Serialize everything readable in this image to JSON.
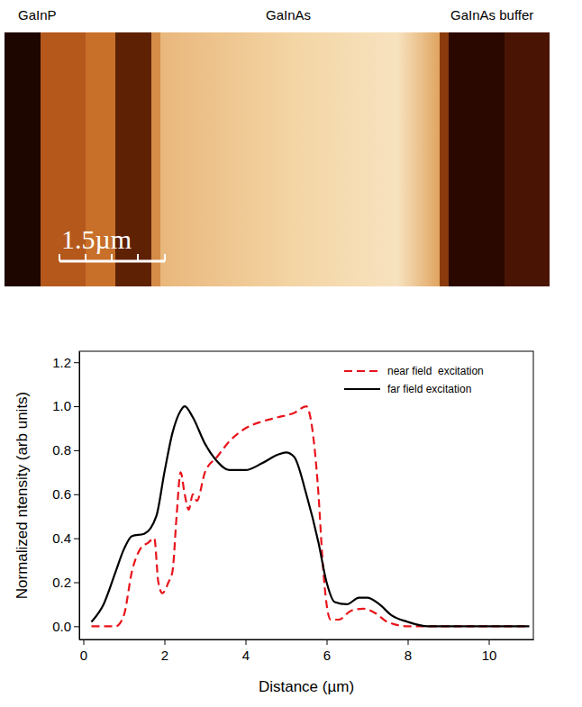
{
  "image": {
    "labels": [
      "GaInP",
      "GaInAs",
      "GaInAs buffer"
    ],
    "scale_bar": "1.5µm"
  },
  "chart_data": {
    "type": "line",
    "x_label": "Distance (µm)",
    "y_label": "Normalized ntensity (arb units)",
    "xlim": [
      -0.1,
      11.1
    ],
    "ylim": [
      -0.06,
      1.25
    ],
    "xticks": [
      0,
      2,
      4,
      6,
      8,
      10
    ],
    "yticks": [
      {
        "value": 0,
        "label": "0.0"
      },
      {
        "value": 0.2,
        "label": "0.2"
      },
      {
        "value": 0.4,
        "label": "0.4"
      },
      {
        "value": 0.6,
        "label": "0.6"
      },
      {
        "value": 0.8,
        "label": "0.8"
      },
      {
        "value": 1.0,
        "label": "1.0"
      },
      {
        "value": 1.2,
        "label": "1.2"
      }
    ],
    "legend": "upper right",
    "series": [
      {
        "name": "near field  excitation",
        "color": "#e8141c",
        "line_style": "dashed",
        "x": [
          0.2,
          0.8,
          1.0,
          1.2,
          1.4,
          1.6,
          1.75,
          1.85,
          1.95,
          2.1,
          2.2,
          2.3,
          2.4,
          2.5,
          2.6,
          2.7,
          2.8,
          3.0,
          3.3,
          3.6,
          4.0,
          4.4,
          4.8,
          5.2,
          5.5,
          5.6,
          5.8,
          5.9,
          6.0,
          6.1,
          6.3,
          6.6,
          6.9,
          7.2,
          7.5,
          8.0,
          9.0,
          11.0
        ],
        "values": [
          0,
          0,
          0.05,
          0.25,
          0.35,
          0.38,
          0.4,
          0.2,
          0.15,
          0.2,
          0.25,
          0.5,
          0.7,
          0.6,
          0.53,
          0.6,
          0.57,
          0.7,
          0.77,
          0.84,
          0.9,
          0.93,
          0.95,
          0.97,
          1.0,
          0.95,
          0.6,
          0.3,
          0.1,
          0.03,
          0.03,
          0.07,
          0.08,
          0.06,
          0.02,
          0,
          0,
          0
        ]
      },
      {
        "name": "far field excitation",
        "color": "#000000",
        "line_style": "solid",
        "x": [
          0.2,
          0.5,
          0.8,
          1.0,
          1.2,
          1.5,
          1.8,
          2.0,
          2.2,
          2.4,
          2.5,
          2.7,
          3.0,
          3.3,
          3.6,
          4.0,
          4.4,
          4.8,
          5.0,
          5.2,
          5.5,
          5.8,
          6.0,
          6.2,
          6.5,
          6.8,
          7.0,
          7.3,
          7.6,
          8.0,
          8.5,
          9.0,
          10.0,
          11.0
        ],
        "values": [
          0.02,
          0.1,
          0.25,
          0.35,
          0.41,
          0.42,
          0.5,
          0.7,
          0.88,
          0.98,
          1.0,
          0.95,
          0.83,
          0.75,
          0.71,
          0.71,
          0.74,
          0.78,
          0.79,
          0.77,
          0.6,
          0.38,
          0.2,
          0.11,
          0.1,
          0.13,
          0.13,
          0.1,
          0.05,
          0.02,
          0,
          0,
          0,
          0
        ]
      }
    ]
  }
}
